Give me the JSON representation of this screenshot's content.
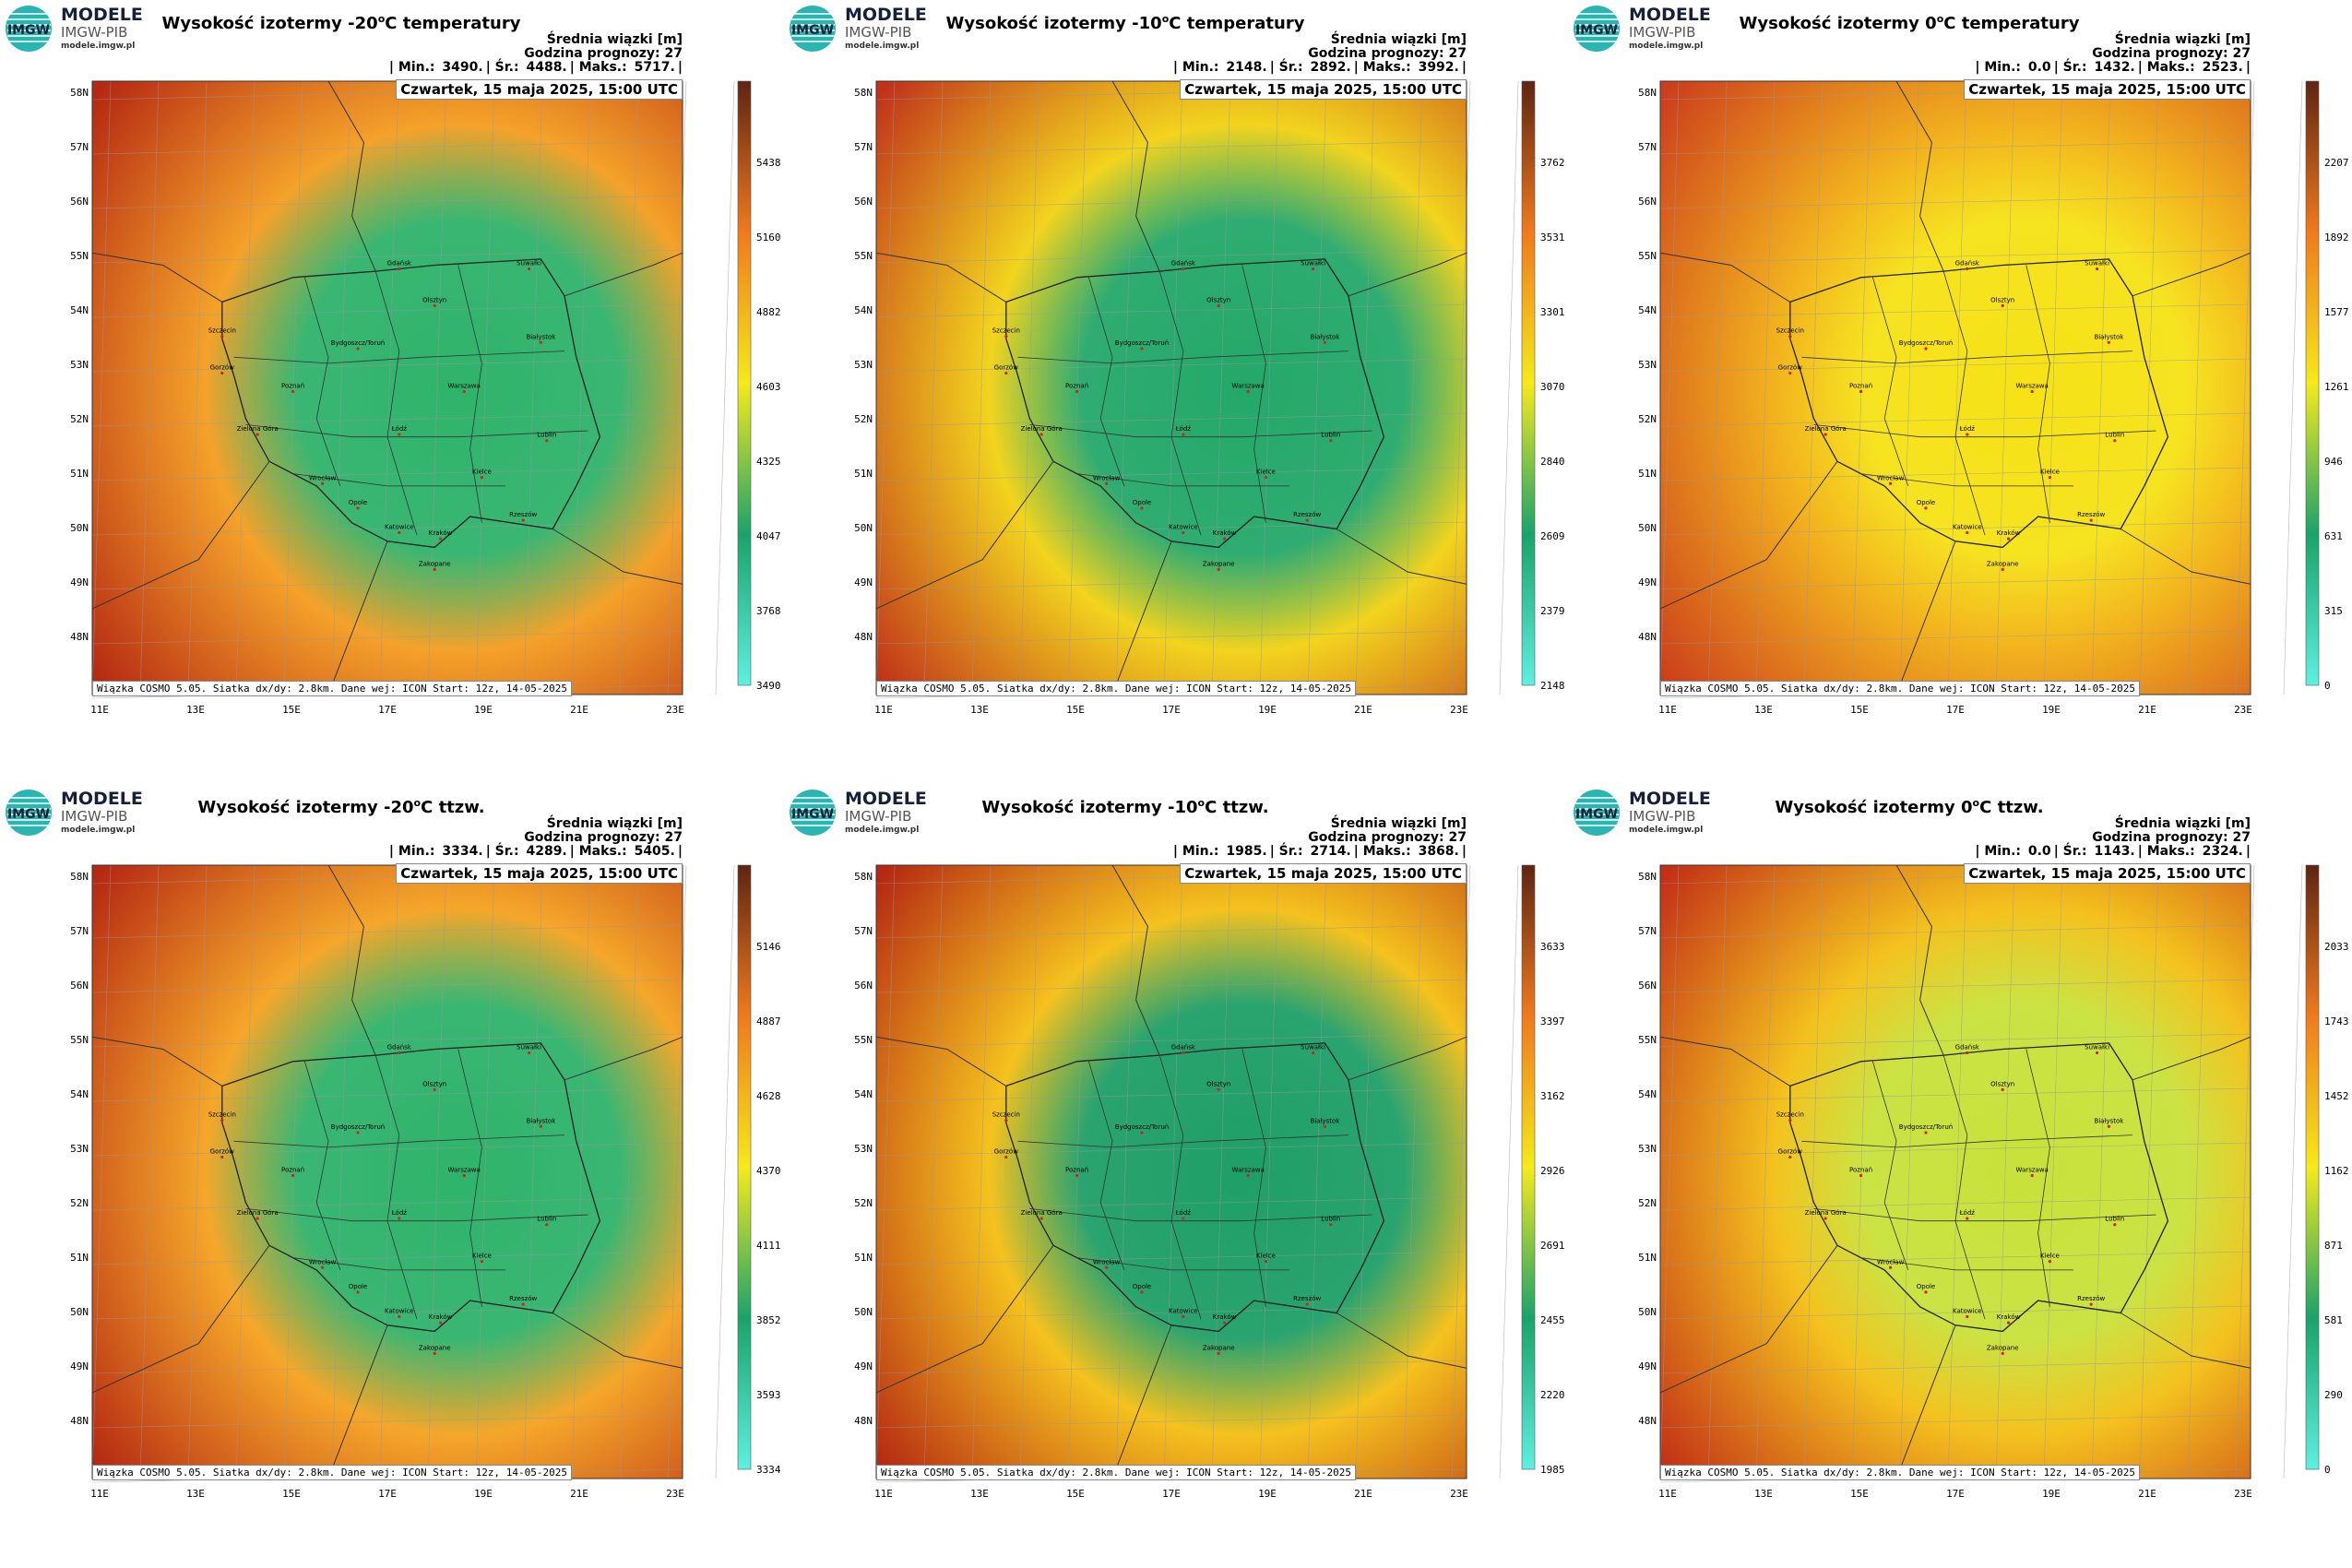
{
  "logo": {
    "line1": "MODELE",
    "line2": "IMGW-PIB",
    "line3": "modele.imgw.pl",
    "badge": "IMGW"
  },
  "common": {
    "units_label": "Średnia wiązki [m]",
    "forecast_hour": "Godzina prognozy: 27",
    "date": "Czwartek, 15 maja 2025, 15:00 UTC",
    "footer": "Wiązka COSMO 5.05. Siatka dx/dy: 2.8km. Dane wej: ICON Start: 12z, 14-05-2025",
    "min_label": "| Min.:",
    "avg_label": "| Śr.:",
    "max_label": "| Maks.:",
    "lat_labels": [
      "58N",
      "57N",
      "56N",
      "55N",
      "54N",
      "53N",
      "52N",
      "51N",
      "50N",
      "49N",
      "48N"
    ],
    "lon_labels": [
      "11E",
      "13E",
      "15E",
      "17E",
      "19E",
      "21E",
      "23E"
    ],
    "cities": [
      "Gdańsk",
      "Olsztyn",
      "Białystok",
      "Suwałki",
      "Szczecin",
      "Bydgoszcz/Toruń",
      "Gorzów",
      "Poznań",
      "Warszawa",
      "Zielona Góra",
      "Łódź",
      "Lublin",
      "Wrocław",
      "Kielce",
      "Opole",
      "Katowice",
      "Kraków",
      "Rzeszów",
      "Zakopane"
    ]
  },
  "panels": [
    {
      "title_pre": "Wysokość izotermy -20",
      "title_sup": "o",
      "title_post": "C temperatury",
      "min": "3490.",
      "avg": "4488.",
      "max": "5717.",
      "colorbar_labels": [
        "5438",
        "5160",
        "4882",
        "4603",
        "4325",
        "4047",
        "3768",
        "3490"
      ],
      "colors": {
        "bg": "#f4a22a",
        "center": "#2fb36b",
        "edge": "#b52812"
      }
    },
    {
      "title_pre": "Wysokość izotermy -10",
      "title_sup": "o",
      "title_post": "C temperatury",
      "min": "2148.",
      "avg": "2892.",
      "max": "3992.",
      "colorbar_labels": [
        "3762",
        "3531",
        "3301",
        "3070",
        "2840",
        "2609",
        "2379",
        "2148"
      ],
      "colors": {
        "bg": "#f2d41e",
        "center": "#24a86a",
        "edge": "#c0321a"
      }
    },
    {
      "title_pre": "Wysokość izotermy 0",
      "title_sup": "o",
      "title_post": "C temperatury",
      "min": "0.0",
      "avg": "1432.",
      "max": "2523.",
      "colorbar_labels": [
        "2207",
        "1892",
        "1577",
        "1261",
        "946",
        "631",
        "315",
        "0"
      ],
      "colors": {
        "bg": "#f2b21e",
        "center": "#f6e215",
        "edge": "#cc3e1c"
      }
    },
    {
      "title_pre": "Wysokość izotermy -20",
      "title_sup": "o",
      "title_post": "C ttzw.",
      "min": "3334.",
      "avg": "4289.",
      "max": "5405.",
      "colorbar_labels": [
        "5146",
        "4887",
        "4628",
        "4370",
        "4111",
        "3852",
        "3593",
        "3334"
      ],
      "colors": {
        "bg": "#f5a72a",
        "center": "#2fb36b",
        "edge": "#b52812"
      }
    },
    {
      "title_pre": "Wysokość izotermy -10",
      "title_sup": "o",
      "title_post": "C ttzw.",
      "min": "1985.",
      "avg": "2714.",
      "max": "3868.",
      "colorbar_labels": [
        "3633",
        "3397",
        "3162",
        "2926",
        "2691",
        "2455",
        "2220",
        "1985"
      ],
      "colors": {
        "bg": "#f5c21e",
        "center": "#1f9f68",
        "edge": "#b52812"
      }
    },
    {
      "title_pre": "Wysokość izotermy 0",
      "title_sup": "o",
      "title_post": "C ttzw.",
      "min": "0.0",
      "avg": "1143.",
      "max": "2324.",
      "colorbar_labels": [
        "2033",
        "1743",
        "1452",
        "1162",
        "871",
        "581",
        "290",
        "0"
      ],
      "colors": {
        "bg": "#f4c21e",
        "center": "#c8e23a",
        "edge": "#c33016"
      }
    }
  ]
}
